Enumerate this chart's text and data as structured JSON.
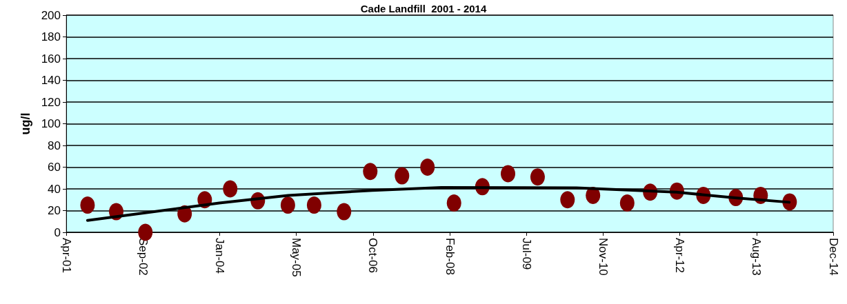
{
  "chart_data": {
    "type": "scatter",
    "title": "Cade Landfill  2001 - 2014",
    "ylabel": "ug/l",
    "xlim": [
      "2001-04-19",
      "2014-12-27"
    ],
    "xticks": [
      {
        "value": "2001-04-19",
        "label": "Apr-01"
      },
      {
        "value": "2002-09-01",
        "label": "Sep-02"
      },
      {
        "value": "2004-01-14",
        "label": "Jan-04"
      },
      {
        "value": "2005-05-28",
        "label": "May-05"
      },
      {
        "value": "2006-10-10",
        "label": "Oct-06"
      },
      {
        "value": "2008-02-22",
        "label": "Feb-08"
      },
      {
        "value": "2009-07-06",
        "label": "Jul-09"
      },
      {
        "value": "2010-11-18",
        "label": "Nov-10"
      },
      {
        "value": "2012-04-01",
        "label": "Apr-12"
      },
      {
        "value": "2013-08-14",
        "label": "Aug-13"
      },
      {
        "value": "2014-12-27",
        "label": "Dec-14"
      }
    ],
    "ylim": [
      0,
      200
    ],
    "yticks": [
      0,
      20,
      40,
      60,
      80,
      100,
      120,
      140,
      160,
      180,
      200
    ],
    "grid": "y",
    "series": [
      {
        "color": "#800000",
        "marker": "circle",
        "x": [
          "2001-09-05",
          "2002-03-11",
          "2002-09-17",
          "2003-05-31",
          "2003-10-09",
          "2004-03-23",
          "2004-09-19",
          "2005-04-03",
          "2005-09-21",
          "2006-04-04",
          "2006-09-22",
          "2007-04-17",
          "2007-09-30",
          "2008-03-21",
          "2008-09-22",
          "2009-03-08",
          "2009-09-17",
          "2010-03-31",
          "2010-09-13",
          "2011-04-24",
          "2011-09-21",
          "2012-03-13",
          "2012-09-02",
          "2013-04-01",
          "2013-09-10",
          "2014-03-18"
        ],
        "values": [
          25,
          19,
          0,
          17,
          30,
          40,
          29,
          25,
          25,
          19,
          56,
          52,
          60,
          27,
          42,
          54,
          51,
          30,
          34,
          27,
          37,
          38,
          34,
          32,
          34,
          28
        ]
      },
      {
        "type": "line",
        "color": "#000000",
        "marker": "none",
        "line_style": "solid",
        "x": [
          "2001-09-05",
          "2004-01-12",
          "2005-04-05",
          "2006-10-05",
          "2007-12-29",
          "2010-05-28",
          "2012-03-10",
          "2013-03-28",
          "2014-03-15"
        ],
        "values": [
          11,
          27,
          34,
          38.6,
          41.3,
          41,
          37,
          31.7,
          27.7
        ]
      }
    ]
  }
}
